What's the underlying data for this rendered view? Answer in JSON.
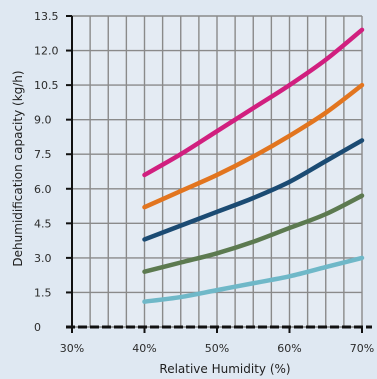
{
  "chart_data": {
    "type": "line",
    "title": "",
    "xlabel": "Relative Humidity (%)",
    "ylabel": "Dehumidification capacity (kg/h)",
    "xlim": [
      30,
      70
    ],
    "ylim": [
      0,
      13.5
    ],
    "x_ticks": [
      30,
      40,
      50,
      60,
      70
    ],
    "x_tick_labels": [
      "30%",
      "40%",
      "50%",
      "60%",
      "70%"
    ],
    "y_ticks": [
      0,
      1.5,
      3,
      4.5,
      6,
      7.5,
      9,
      10.5,
      12,
      13.5
    ],
    "y_tick_labels": [
      "0",
      "1.5",
      "3.0",
      "4.5",
      "6.0",
      "7.5",
      "9.0",
      "10.5",
      "12.0",
      "13.5"
    ],
    "grid": true,
    "background_color": "#dfe8f2",
    "plot_background": "#e4ebf3",
    "grid_color": "#8a8a8a",
    "axis_color": "#111111",
    "x": [
      40,
      45,
      50,
      55,
      60,
      65,
      70
    ],
    "series": [
      {
        "color": "#d11f7f",
        "values": [
          6.6,
          7.5,
          8.5,
          9.5,
          10.5,
          11.6,
          12.9
        ]
      },
      {
        "color": "#e2751f",
        "values": [
          5.2,
          5.9,
          6.6,
          7.4,
          8.3,
          9.3,
          10.5
        ]
      },
      {
        "color": "#1b4b73",
        "values": [
          3.8,
          4.4,
          5.0,
          5.6,
          6.3,
          7.2,
          8.1
        ]
      },
      {
        "color": "#5c7a50",
        "values": [
          2.4,
          2.8,
          3.2,
          3.7,
          4.3,
          4.9,
          5.7
        ]
      },
      {
        "color": "#6fb8c8",
        "values": [
          1.1,
          1.3,
          1.6,
          1.9,
          2.2,
          2.6,
          3.0
        ]
      }
    ]
  }
}
